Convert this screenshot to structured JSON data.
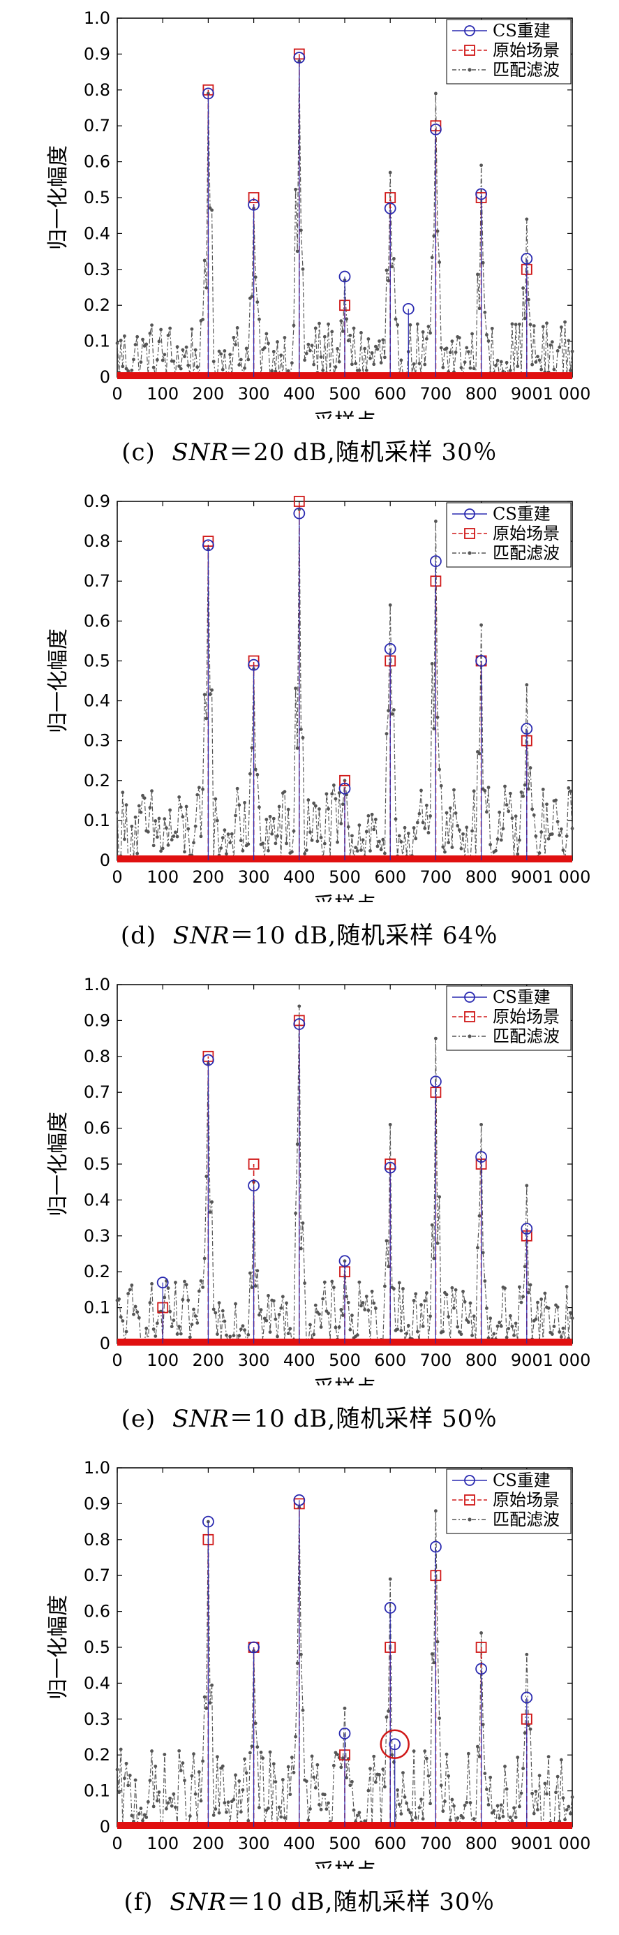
{
  "chart_data": [
    {
      "type": "line",
      "id": "c",
      "caption": {
        "label": "(c)",
        "snr": "SNR",
        "text": "＝20 dB,随机采样 30％"
      },
      "xlabel": "采样点",
      "ylabel": "归一化幅度",
      "xlim": [
        0,
        1000
      ],
      "ylim": [
        0,
        1.0
      ],
      "xticks": [
        "0",
        "100",
        "200",
        "300",
        "400",
        "500",
        "600",
        "700",
        "800",
        "900",
        "1 000"
      ],
      "yticks": [
        "0",
        "0.1",
        "0.2",
        "0.3",
        "0.4",
        "0.5",
        "0.6",
        "0.7",
        "0.8",
        "0.9",
        "1.0"
      ],
      "legend": [
        "CS重建",
        "原始场景",
        "匹配滤波"
      ],
      "series": [
        {
          "name": "CS重建",
          "x": [
            200,
            300,
            400,
            500,
            600,
            640,
            700,
            800,
            900
          ],
          "values": [
            0.79,
            0.48,
            0.89,
            0.28,
            0.47,
            0.19,
            0.69,
            0.51,
            0.33
          ]
        },
        {
          "name": "原始场景",
          "x": [
            200,
            300,
            400,
            500,
            600,
            700,
            800,
            900
          ],
          "values": [
            0.8,
            0.5,
            0.9,
            0.2,
            0.5,
            0.7,
            0.5,
            0.3
          ]
        },
        {
          "name": "匹配滤波",
          "x": [
            200,
            300,
            400,
            500,
            600,
            700,
            800,
            900
          ],
          "values": [
            0.79,
            0.47,
            0.88,
            0.27,
            0.57,
            0.79,
            0.59,
            0.44
          ],
          "noise_level": 0.12
        }
      ]
    },
    {
      "type": "line",
      "id": "d",
      "caption": {
        "label": "(d)",
        "snr": "SNR",
        "text": "＝10 dB,随机采样 64％"
      },
      "xlabel": "采样点",
      "ylabel": "归一化幅度",
      "xlim": [
        0,
        1000
      ],
      "ylim": [
        0,
        0.9
      ],
      "xticks": [
        "0",
        "100",
        "200",
        "300",
        "400",
        "500",
        "600",
        "700",
        "800",
        "900",
        "1 000"
      ],
      "yticks": [
        "0",
        "0.1",
        "0.2",
        "0.3",
        "0.4",
        "0.5",
        "0.6",
        "0.7",
        "0.8",
        "0.9"
      ],
      "legend": [
        "CS重建",
        "原始场景",
        "匹配滤波"
      ],
      "series": [
        {
          "name": "CS重建",
          "x": [
            200,
            300,
            400,
            500,
            600,
            700,
            800,
            900
          ],
          "values": [
            0.79,
            0.49,
            0.87,
            0.18,
            0.53,
            0.75,
            0.5,
            0.33
          ]
        },
        {
          "name": "原始场景",
          "x": [
            200,
            300,
            400,
            500,
            600,
            700,
            800,
            900
          ],
          "values": [
            0.8,
            0.5,
            0.9,
            0.2,
            0.5,
            0.7,
            0.5,
            0.3
          ]
        },
        {
          "name": "匹配滤波",
          "x": [
            200,
            300,
            400,
            500,
            600,
            700,
            800,
            900
          ],
          "values": [
            0.78,
            0.48,
            0.88,
            0.2,
            0.64,
            0.85,
            0.59,
            0.44
          ],
          "noise_level": 0.14
        }
      ]
    },
    {
      "type": "line",
      "id": "e",
      "caption": {
        "label": "(e)",
        "snr": "SNR",
        "text": "＝10 dB,随机采样 50％"
      },
      "xlabel": "采样点",
      "ylabel": "归一化幅度",
      "xlim": [
        0,
        1000
      ],
      "ylim": [
        0,
        1.0
      ],
      "xticks": [
        "0",
        "100",
        "200",
        "300",
        "400",
        "500",
        "600",
        "700",
        "800",
        "900",
        "1 000"
      ],
      "yticks": [
        "0",
        "0.1",
        "0.2",
        "0.3",
        "0.4",
        "0.5",
        "0.6",
        "0.7",
        "0.8",
        "0.9",
        "1.0"
      ],
      "legend": [
        "CS重建",
        "原始场景",
        "匹配滤波"
      ],
      "series": [
        {
          "name": "CS重建",
          "x": [
            100,
            200,
            300,
            400,
            500,
            600,
            700,
            800,
            900
          ],
          "values": [
            0.17,
            0.79,
            0.44,
            0.89,
            0.23,
            0.49,
            0.73,
            0.52,
            0.32
          ]
        },
        {
          "name": "原始场景",
          "x": [
            100,
            200,
            300,
            400,
            500,
            600,
            700,
            800,
            900
          ],
          "values": [
            0.1,
            0.8,
            0.5,
            0.9,
            0.2,
            0.5,
            0.7,
            0.5,
            0.3
          ]
        },
        {
          "name": "匹配滤波",
          "x": [
            200,
            300,
            400,
            500,
            600,
            700,
            800,
            900
          ],
          "values": [
            0.78,
            0.45,
            0.94,
            0.23,
            0.61,
            0.85,
            0.61,
            0.44
          ],
          "noise_level": 0.13
        }
      ]
    },
    {
      "type": "line",
      "id": "f",
      "caption": {
        "label": "(f)",
        "snr": "SNR",
        "text": "＝10 dB,随机采样 30％"
      },
      "xlabel": "采样点",
      "ylabel": "归一化幅度",
      "xlim": [
        0,
        1000
      ],
      "ylim": [
        0,
        1.0
      ],
      "xticks": [
        "0",
        "100",
        "200",
        "300",
        "400",
        "500",
        "600",
        "700",
        "800",
        "900",
        "1 000"
      ],
      "yticks": [
        "0",
        "0.1",
        "0.2",
        "0.3",
        "0.4",
        "0.5",
        "0.6",
        "0.7",
        "0.8",
        "0.9",
        "1.0"
      ],
      "legend": [
        "CS重建",
        "原始场景",
        "匹配滤波"
      ],
      "annotation": {
        "type": "circle",
        "x": 610,
        "y": 0.23
      },
      "series": [
        {
          "name": "CS重建",
          "x": [
            200,
            300,
            400,
            500,
            600,
            610,
            700,
            800,
            900
          ],
          "values": [
            0.85,
            0.5,
            0.91,
            0.26,
            0.61,
            0.23,
            0.78,
            0.44,
            0.36
          ]
        },
        {
          "name": "原始场景",
          "x": [
            200,
            300,
            400,
            500,
            600,
            700,
            800,
            900
          ],
          "values": [
            0.8,
            0.5,
            0.9,
            0.2,
            0.5,
            0.7,
            0.5,
            0.3
          ]
        },
        {
          "name": "匹配滤波",
          "x": [
            200,
            300,
            400,
            500,
            600,
            700,
            800,
            900
          ],
          "values": [
            0.85,
            0.49,
            0.89,
            0.33,
            0.69,
            0.88,
            0.54,
            0.48
          ],
          "noise_level": 0.16
        }
      ]
    }
  ]
}
